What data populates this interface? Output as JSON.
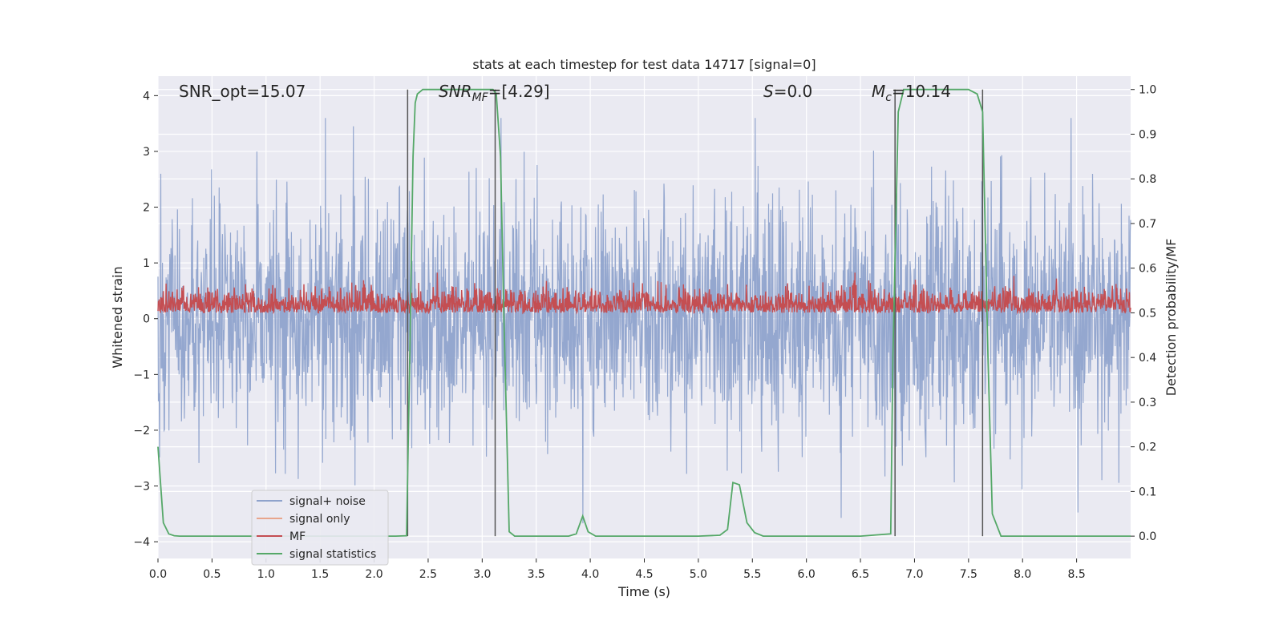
{
  "chart_data": {
    "type": "line",
    "title": "stats at each timestep for test data 14717 [signal=0]",
    "xlabel": "Time (s)",
    "ylabel": "Whitened strain",
    "y2label": "Detection probability/MF",
    "xlim": [
      0.0,
      9.0
    ],
    "ylim": [
      -4.3,
      4.35
    ],
    "y2lim": [
      -0.05,
      1.03
    ],
    "xticks": [
      "0.0",
      "0.5",
      "1.0",
      "1.5",
      "2.0",
      "2.5",
      "3.0",
      "3.5",
      "4.0",
      "4.5",
      "5.0",
      "5.5",
      "6.0",
      "6.5",
      "7.0",
      "7.5",
      "8.0",
      "8.5"
    ],
    "xtick_values": [
      0.0,
      0.5,
      1.0,
      1.5,
      2.0,
      2.5,
      3.0,
      3.5,
      4.0,
      4.5,
      5.0,
      5.5,
      6.0,
      6.5,
      7.0,
      7.5,
      8.0,
      8.5
    ],
    "yticks": [
      "4",
      "3",
      "2",
      "1",
      "0",
      "−1",
      "−2",
      "−3",
      "−4"
    ],
    "ytick_values": [
      4,
      3,
      2,
      1,
      0,
      -1,
      -2,
      -3,
      -4
    ],
    "y2ticks": [
      "1.0",
      "0.9",
      "0.8",
      "0.7",
      "0.6",
      "0.5",
      "0.4",
      "0.3",
      "0.2",
      "0.1",
      "0.0"
    ],
    "y2tick_values": [
      1.0,
      0.9,
      0.8,
      0.7,
      0.6,
      0.5,
      0.4,
      0.3,
      0.2,
      0.1,
      0.0
    ],
    "annotations": {
      "snr_opt": "SNR_opt=15.07",
      "snr_mf_main": "SNR",
      "snr_mf_sub": "MF",
      "snr_mf_rest": "=[4.29]",
      "s_italic": "S",
      "s_rest": "=0.0",
      "mc_main": "M",
      "mc_sub": "c",
      "mc_rest": "=10.14"
    },
    "legend": {
      "placement": "lower-left",
      "items": [
        {
          "label": "signal+ noise",
          "color": "#8fa3cc"
        },
        {
          "label": "signal only",
          "color": "#e8a58c"
        },
        {
          "label": "MF",
          "color": "#c44e52"
        },
        {
          "label": "signal statistics",
          "color": "#55a868"
        }
      ]
    },
    "series": [
      {
        "name": "signal+ noise",
        "color": "#8fa3cc",
        "description": "whitened strain noise, mostly within ±2.5 with spikes to ±3.5",
        "envelope_upper": 2.4,
        "envelope_lower": -2.3
      },
      {
        "name": "MF",
        "color": "#c44e52",
        "description": "matched filter output on right axis, roughly 0.5 to 0.58",
        "baseline": 0.5,
        "peak": 0.58
      },
      {
        "name": "signal statistics",
        "color": "#55a868",
        "axis": "right",
        "x": [
          0.0,
          0.05,
          0.1,
          0.15,
          0.2,
          0.3,
          0.5,
          1.0,
          1.5,
          2.0,
          2.2,
          2.3,
          2.33,
          2.36,
          2.38,
          2.4,
          2.45,
          2.6,
          3.0,
          3.1,
          3.13,
          3.17,
          3.2,
          3.25,
          3.3,
          3.5,
          3.8,
          3.87,
          3.93,
          3.98,
          4.05,
          4.2,
          4.5,
          5.0,
          5.2,
          5.27,
          5.32,
          5.38,
          5.45,
          5.52,
          5.6,
          6.0,
          6.5,
          6.78,
          6.8,
          6.85,
          6.9,
          7.0,
          7.5,
          7.58,
          7.63,
          7.68,
          7.72,
          7.8,
          8.5,
          9.0
        ],
        "values": [
          0.2,
          0.03,
          0.005,
          0.001,
          0.0,
          0.0,
          0.0,
          0.0,
          0.0,
          0.0,
          0.0,
          0.001,
          0.4,
          0.85,
          0.97,
          0.99,
          1.0,
          1.0,
          1.0,
          1.0,
          0.99,
          0.85,
          0.5,
          0.01,
          0.0,
          0.0,
          0.0,
          0.005,
          0.045,
          0.01,
          0.0,
          0.0,
          0.0,
          0.0,
          0.002,
          0.015,
          0.12,
          0.115,
          0.03,
          0.008,
          0.0,
          0.0,
          0.0,
          0.005,
          0.4,
          0.95,
          1.0,
          1.0,
          1.0,
          0.99,
          0.95,
          0.4,
          0.05,
          0.0,
          0.0,
          0.0
        ]
      }
    ],
    "vlines": [
      2.31,
      3.12,
      6.82,
      7.63
    ]
  }
}
